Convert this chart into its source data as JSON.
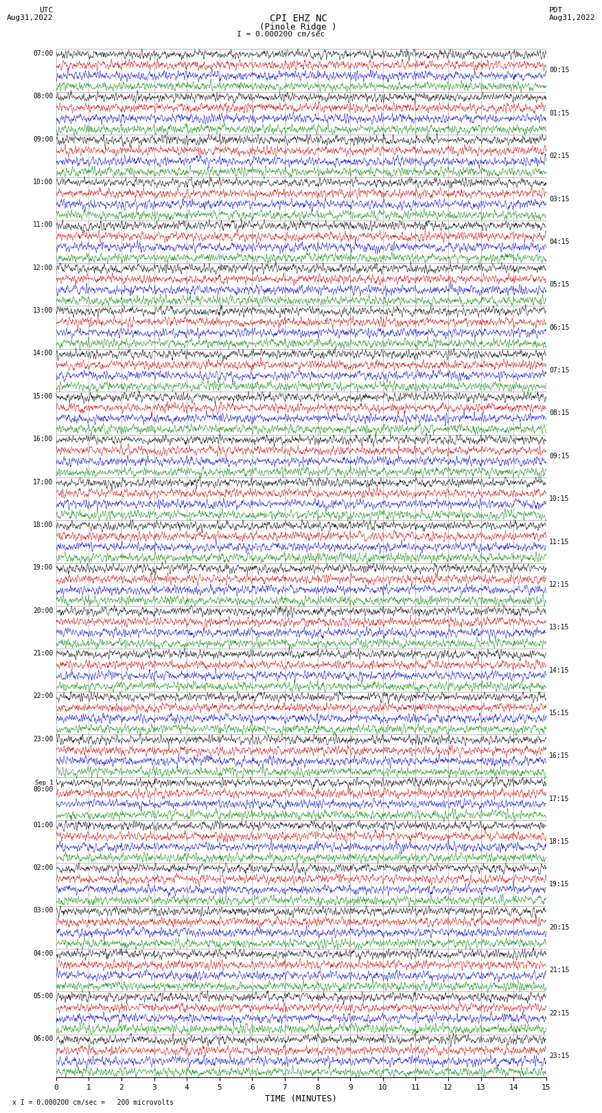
{
  "title_line1": "CPI EHZ NC",
  "title_line2": "(Pinole Ridge )",
  "scale_label": "I = 0.000200 cm/sec",
  "bottom_label": "x I = 0.000200 cm/sec =   200 microvolts",
  "utc_label": "UTC\nAug31,2022",
  "pdt_label": "PDT\nAug31,2022",
  "xlabel": "TIME (MINUTES)",
  "bg_color": "#ffffff",
  "trace_colors": [
    "#000000",
    "#cc0000",
    "#0000cc",
    "#008800"
  ],
  "grid_color": "#888888",
  "fig_width": 8.5,
  "fig_height": 16.13,
  "xmin": 0,
  "xmax": 15,
  "xticks": [
    0,
    1,
    2,
    3,
    4,
    5,
    6,
    7,
    8,
    9,
    10,
    11,
    12,
    13,
    14,
    15
  ],
  "num_groups": 24,
  "traces_per_group": 4,
  "left_times_utc": [
    "07:00",
    "08:00",
    "09:00",
    "10:00",
    "11:00",
    "12:00",
    "13:00",
    "14:00",
    "15:00",
    "16:00",
    "17:00",
    "18:00",
    "19:00",
    "20:00",
    "21:00",
    "22:00",
    "23:00",
    "Sep 1\n00:00",
    "01:00",
    "02:00",
    "03:00",
    "04:00",
    "05:00",
    "06:00"
  ],
  "right_times_pdt": [
    "00:15",
    "01:15",
    "02:15",
    "03:15",
    "04:15",
    "05:15",
    "06:15",
    "07:15",
    "08:15",
    "09:15",
    "10:15",
    "11:15",
    "12:15",
    "13:15",
    "14:15",
    "15:15",
    "16:15",
    "17:15",
    "18:15",
    "19:15",
    "20:15",
    "21:15",
    "22:15",
    "23:15"
  ],
  "trace_amplitude": 0.38,
  "noise_smooth_kernel": 4
}
